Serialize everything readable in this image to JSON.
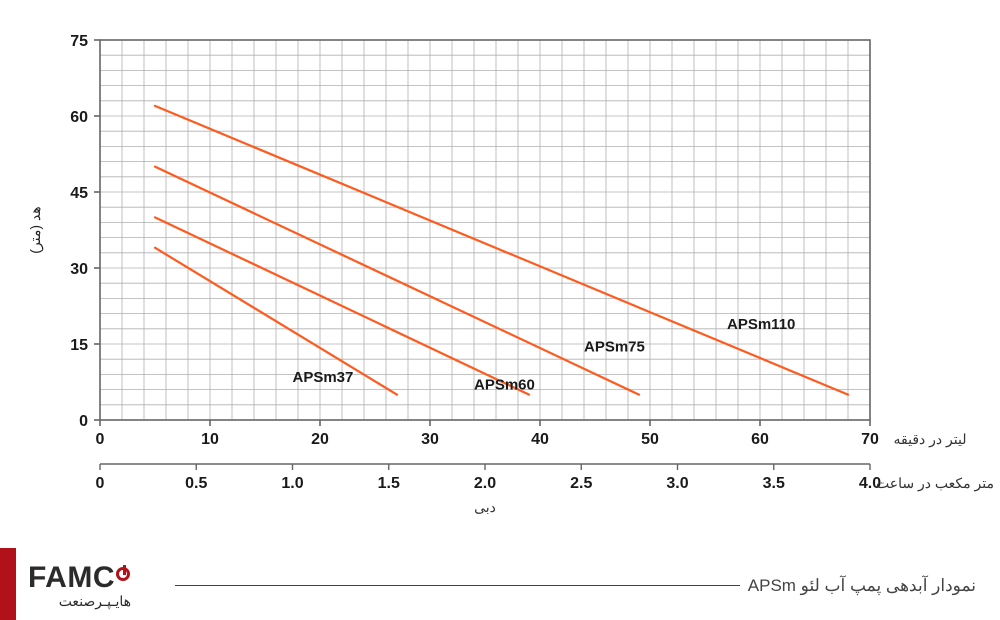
{
  "chart": {
    "type": "line",
    "background_color": "#ffffff",
    "grid_color": "#b0b0b0",
    "grid_stroke_width": 0.8,
    "border_color": "#666666",
    "border_stroke_width": 1.6,
    "line_color": "#ff5a1f",
    "line_stroke_width": 2.2,
    "y_axis": {
      "label": "هد (متر)",
      "min": 0,
      "max": 75,
      "major_step": 15,
      "minor_step": 3,
      "ticks": [
        0,
        15,
        30,
        45,
        60,
        75
      ],
      "label_fontsize": 14,
      "tick_fontsize": 16,
      "tick_color": "#1a1a1a",
      "tick_fontweight": "bold"
    },
    "x_axis_top": {
      "label": "لیتر در دقیقه",
      "min": 0,
      "max": 70,
      "major_step": 10,
      "minor_step": 2,
      "ticks": [
        0,
        10,
        20,
        30,
        40,
        50,
        60,
        70
      ],
      "label_fontsize": 14,
      "tick_fontsize": 16,
      "tick_color": "#1a1a1a",
      "tick_fontweight": "bold"
    },
    "x_axis_bottom": {
      "label": "متر مکعب در ساعت",
      "min": 0,
      "max": 4.0,
      "ticks": [
        0,
        0.5,
        1.0,
        1.5,
        2.0,
        2.5,
        3.0,
        3.5,
        4.0
      ],
      "label_fontsize": 14,
      "tick_fontsize": 16,
      "tick_color": "#1a1a1a",
      "tick_fontweight": "bold"
    },
    "x_center_label": "دبی",
    "series": [
      {
        "name": "APSm37",
        "p1": {
          "x": 5,
          "y": 34
        },
        "p2": {
          "x": 27,
          "y": 5
        },
        "label_pos": {
          "x": 17.5,
          "y": 7.5
        }
      },
      {
        "name": "APSm60",
        "p1": {
          "x": 5,
          "y": 40
        },
        "p2": {
          "x": 39,
          "y": 5
        },
        "label_pos": {
          "x": 34,
          "y": 6
        }
      },
      {
        "name": "APSm75",
        "p1": {
          "x": 5,
          "y": 50
        },
        "p2": {
          "x": 49,
          "y": 5
        },
        "label_pos": {
          "x": 44,
          "y": 13.5
        }
      },
      {
        "name": "APSm110",
        "p1": {
          "x": 5,
          "y": 62
        },
        "p2": {
          "x": 68,
          "y": 5
        },
        "label_pos": {
          "x": 57,
          "y": 18
        }
      }
    ],
    "series_label_fontsize": 15,
    "series_label_fontweight": "bold",
    "series_label_color": "#1a1a1a"
  },
  "footer": {
    "brand_main": "FAMCO",
    "brand_sub": "هایـپـرصنعت",
    "title": "نمودار آبدهی پمپ آب لئو APSm",
    "accent_color": "#b0111a",
    "line_color": "#b0111a",
    "text_color": "#444444"
  }
}
